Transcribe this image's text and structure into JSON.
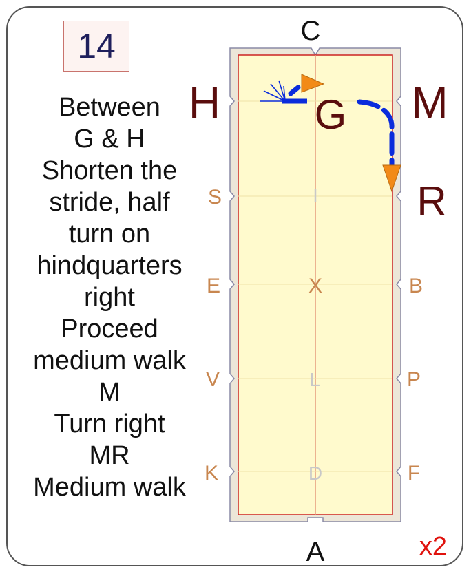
{
  "test": {
    "movement_number": "14",
    "instructions": [
      "Between",
      "G & H",
      "Shorten the",
      "stride, half",
      "turn on",
      "hindquarters",
      "right",
      "Proceed",
      "medium walk",
      "M",
      "Turn right",
      "MR",
      "Medium walk"
    ],
    "repeat_label": "x2"
  },
  "arena": {
    "end_letters": {
      "top": "C",
      "bottom": "A"
    },
    "highlight_letters": {
      "left_top": "H",
      "right_top": "M",
      "right_second": "R",
      "centre_marker": "G"
    },
    "left_letters": [
      "S",
      "E",
      "V",
      "K"
    ],
    "right_letters": [
      "B",
      "P",
      "F"
    ],
    "centre_letters": [
      "I",
      "X",
      "L",
      "D"
    ]
  },
  "colors": {
    "arena_fill": "#fffacd",
    "arena_outer": "#ece6d8",
    "border_line": "#cc2222",
    "letter_brown": "#c8864f",
    "letter_dark": "#5a0d0d",
    "path_blue": "#0a2bdc",
    "arrow_orange": "#f28a17",
    "repeat_red": "#e0120d"
  }
}
